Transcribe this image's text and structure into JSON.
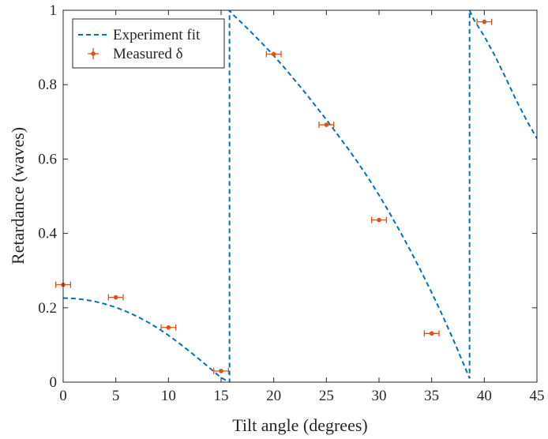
{
  "chart_data": {
    "type": "scatter",
    "xlabel": "Tilt angle (degrees)",
    "ylabel": "Retardance (waves)",
    "xlim": [
      0,
      45
    ],
    "ylim": [
      0,
      1
    ],
    "x_ticks": [
      "0",
      "5",
      "10",
      "15",
      "20",
      "25",
      "30",
      "35",
      "40",
      "45"
    ],
    "y_ticks": [
      "0",
      "0.2",
      "0.4",
      "0.6",
      "0.8",
      "1"
    ],
    "grid": false,
    "legend_position": "top-left",
    "legend": [
      "Experiment fit",
      "Measured δ"
    ],
    "colors": {
      "fit": "#0072BD",
      "measured": "#D95319",
      "axis": "#262626"
    },
    "series": [
      {
        "name": "Experiment fit",
        "style": "dashed-line",
        "x": [
          0,
          1,
          2,
          3,
          4,
          5,
          6,
          7,
          8,
          9,
          10,
          11,
          12,
          13,
          14,
          15,
          15.8,
          15.8,
          16,
          17,
          18,
          19,
          20,
          21,
          22,
          23,
          24,
          25,
          26,
          27,
          28,
          29,
          30,
          31,
          32,
          33,
          34,
          35,
          36,
          37,
          38,
          38.6,
          38.6,
          39,
          40,
          41,
          42,
          43,
          44,
          45
        ],
        "y": [
          0.226,
          0.225,
          0.222,
          0.217,
          0.21,
          0.201,
          0.19,
          0.177,
          0.162,
          0.145,
          0.126,
          0.105,
          0.083,
          0.06,
          0.036,
          0.012,
          0.0,
          1.0,
          0.992,
          0.965,
          0.937,
          0.908,
          0.878,
          0.846,
          0.812,
          0.778,
          0.742,
          0.706,
          0.668,
          0.63,
          0.59,
          0.548,
          0.503,
          0.455,
          0.405,
          0.353,
          0.298,
          0.241,
          0.181,
          0.118,
          0.051,
          0.01,
          1.0,
          0.975,
          0.93,
          0.878,
          0.82,
          0.76,
          0.705,
          0.655
        ]
      },
      {
        "name": "Measured δ",
        "style": "errorbar-points",
        "x": [
          0,
          5,
          10,
          15,
          20,
          25,
          30,
          35,
          40
        ],
        "y": [
          0.262,
          0.228,
          0.147,
          0.03,
          0.882,
          0.692,
          0.436,
          0.131,
          0.969
        ],
        "x_error": [
          0.7,
          0.7,
          0.7,
          0.7,
          0.7,
          0.7,
          0.7,
          0.7,
          0.7
        ],
        "y_error": [
          0.005,
          0.005,
          0.005,
          0.005,
          0.005,
          0.005,
          0.005,
          0.005,
          0.005
        ]
      }
    ]
  }
}
